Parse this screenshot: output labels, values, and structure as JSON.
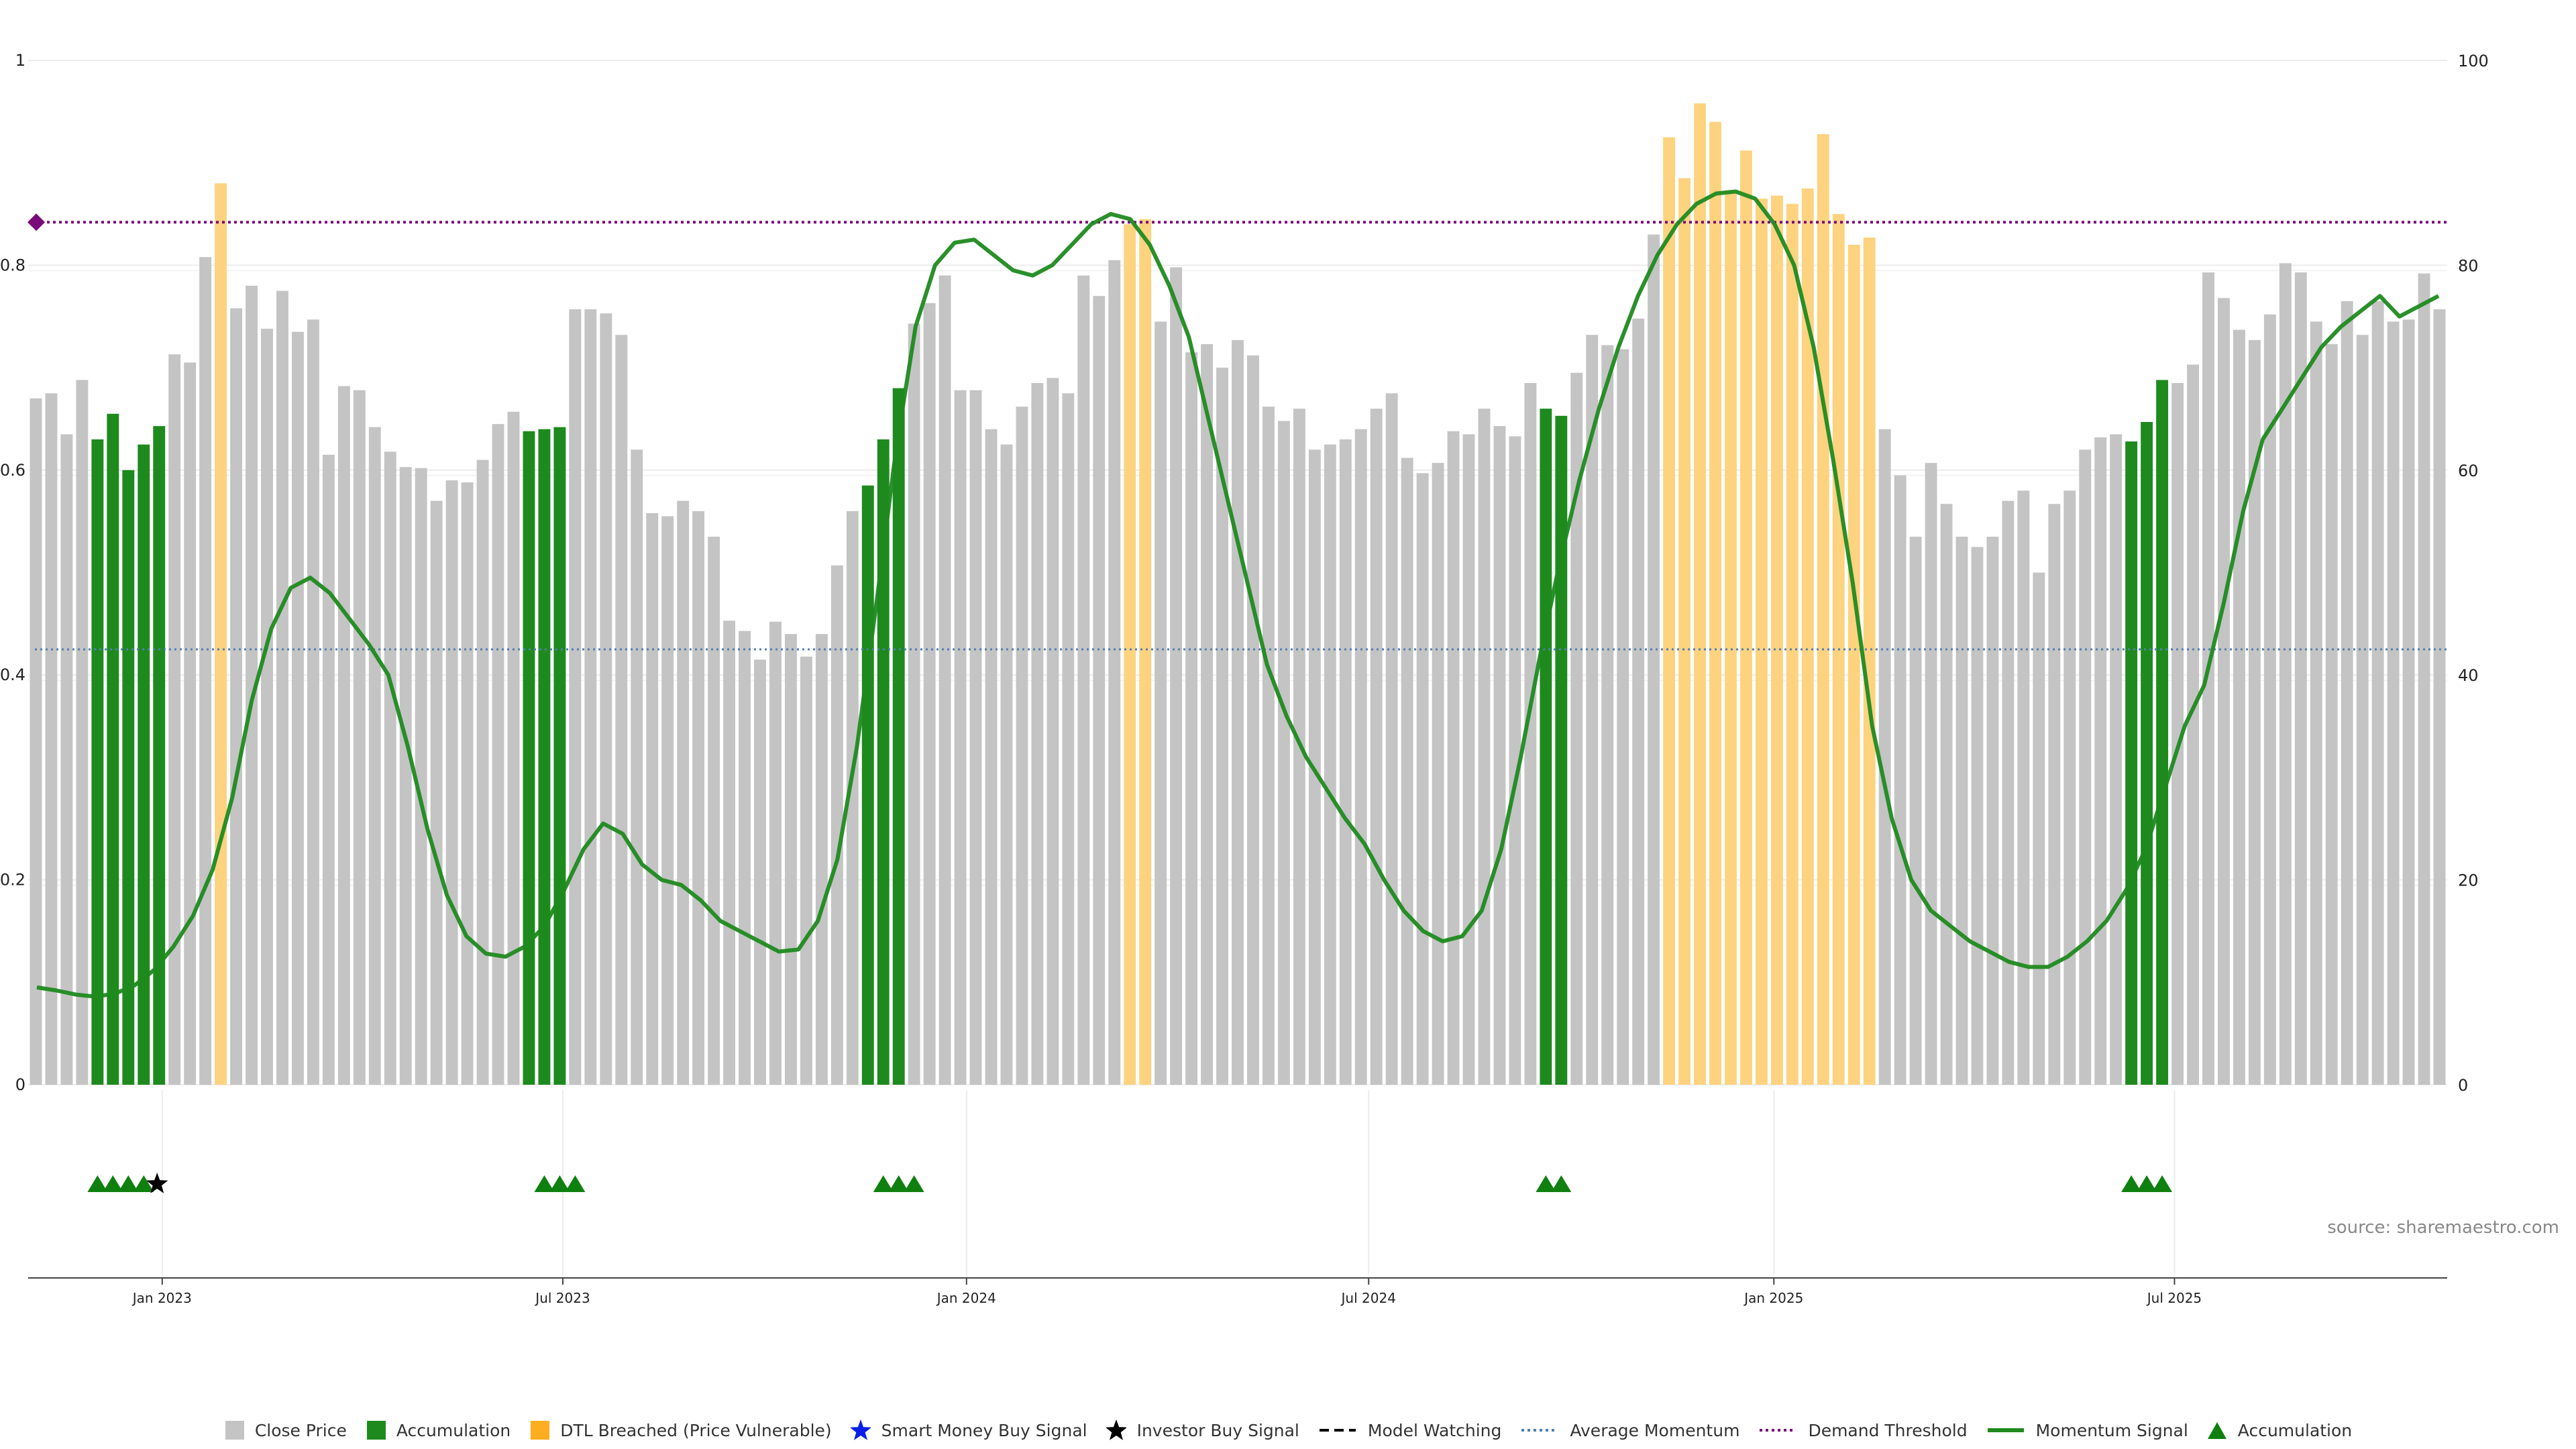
{
  "chart_data": {
    "type": "bar",
    "x_ticks": [
      "Jan 2023",
      "Jul 2023",
      "Jan 2024",
      "Jul 2024",
      "Jan 2025",
      "Jul 2025"
    ],
    "left_axis": {
      "ticks": [
        "0",
        "0.2",
        "0.4",
        "0.6",
        "0.8",
        "1"
      ],
      "ylim": [
        0,
        1
      ]
    },
    "right_axis": {
      "ticks": [
        "0",
        "20",
        "40",
        "60",
        "80",
        "100"
      ],
      "ylim": [
        0,
        100
      ]
    },
    "series_close_price": {
      "name": "Close Price",
      "color": "#c4c4c4",
      "values": [
        0.67,
        0.675,
        0.635,
        0.688,
        0.63,
        0.655,
        0.6,
        0.625,
        0.643,
        0.713,
        0.705,
        0.808,
        0.88,
        0.758,
        0.78,
        0.738,
        0.775,
        0.735,
        0.747,
        0.615,
        0.682,
        0.678,
        0.642,
        0.618,
        0.603,
        0.602,
        0.57,
        0.59,
        0.588,
        0.61,
        0.645,
        0.657,
        0.638,
        0.64,
        0.642,
        0.757,
        0.757,
        0.753,
        0.732,
        0.62,
        0.558,
        0.555,
        0.57,
        0.56,
        0.535,
        0.453,
        0.443,
        0.415,
        0.452,
        0.44,
        0.418,
        0.44,
        0.507,
        0.56,
        0.585,
        0.63,
        0.68,
        0.743,
        0.763,
        0.79,
        0.678,
        0.678,
        0.64,
        0.625,
        0.662,
        0.685,
        0.69,
        0.675,
        0.79,
        0.77,
        0.805,
        0.84,
        0.845,
        0.745,
        0.798,
        0.715,
        0.723,
        0.7,
        0.727,
        0.712,
        0.662,
        0.648,
        0.66,
        0.62,
        0.625,
        0.63,
        0.64,
        0.66,
        0.675,
        0.612,
        0.597,
        0.607,
        0.638,
        0.635,
        0.66,
        0.643,
        0.633,
        0.685,
        0.66,
        0.653,
        0.695,
        0.732,
        0.722,
        0.718,
        0.748,
        0.83,
        0.925,
        0.885,
        0.958,
        0.94,
        0.873,
        0.912,
        0.865,
        0.868,
        0.86,
        0.875,
        0.928,
        0.85,
        0.82,
        0.827,
        0.64,
        0.595,
        0.535,
        0.607,
        0.567,
        0.535,
        0.525,
        0.535,
        0.57,
        0.58,
        0.5,
        0.567,
        0.58,
        0.62,
        0.632,
        0.635,
        0.628,
        0.647,
        0.688,
        0.685,
        0.703,
        0.793,
        0.768,
        0.737,
        0.727,
        0.752,
        0.802,
        0.793,
        0.745,
        0.723,
        0.765,
        0.732,
        0.765,
        0.745,
        0.747,
        0.792,
        0.757
      ]
    },
    "series_accumulation_bars": {
      "name": "Accumulation",
      "color": "#1e8a1e",
      "indices": [
        4,
        5,
        6,
        7,
        8,
        32,
        33,
        34,
        54,
        55,
        56,
        98,
        99,
        136,
        137,
        138
      ]
    },
    "series_dtl_breached": {
      "name": "DTL Breached (Price Vulnerable)",
      "color": "#fdd380",
      "indices": [
        12,
        71,
        72,
        106,
        107,
        108,
        109,
        110,
        111,
        112,
        113,
        114,
        115,
        116,
        117,
        118,
        119
      ]
    },
    "series_momentum": {
      "name": "Momentum Signal",
      "color": "#1f8a1f",
      "values": [
        9.5,
        9.2,
        8.8,
        8.6,
        8.9,
        9.7,
        11.2,
        13.5,
        16.5,
        21,
        28,
        37.5,
        44.5,
        48.5,
        49.5,
        48,
        45.5,
        43,
        40,
        33,
        25,
        18.5,
        14.5,
        12.8,
        12.5,
        13.5,
        15.5,
        19,
        23,
        25.5,
        24.5,
        21.5,
        20,
        19.5,
        18,
        16,
        15,
        14,
        13,
        13.2,
        16,
        22,
        33,
        47,
        62,
        74,
        80,
        82.2,
        82.5,
        81,
        79.5,
        79,
        80,
        82,
        84,
        85,
        84.5,
        82,
        78,
        73,
        65,
        57,
        49,
        41,
        36,
        32,
        29,
        26,
        23.5,
        20,
        17,
        15,
        14,
        14.5,
        17,
        23,
        32,
        42,
        51,
        59,
        66,
        72,
        77,
        81,
        84,
        86,
        87,
        87.2,
        86.5,
        84,
        80,
        72,
        61,
        49,
        35,
        26,
        20,
        17,
        15.5,
        14,
        13,
        12,
        11.5,
        11.5,
        12.5,
        14,
        16,
        19,
        23,
        29,
        35,
        39,
        47,
        56,
        63,
        66,
        69,
        72,
        74,
        75.5,
        77,
        75,
        76,
        77
      ]
    },
    "average_momentum": {
      "name": "Average Momentum",
      "value": 0.425,
      "color": "#4f7fb5"
    },
    "demand_threshold": {
      "name": "Demand Threshold",
      "value": 0.842,
      "color": "#7a0a7a"
    },
    "accumulation_markers": {
      "name": "Accumulation",
      "color": "#0f800f",
      "indices": [
        4,
        5,
        6,
        7,
        33,
        34,
        35,
        55,
        56,
        57,
        98,
        99,
        136,
        137,
        138
      ]
    },
    "investor_buy_signal": {
      "name": "Investor Buy Signal",
      "color": "#000000",
      "indices": [
        8
      ]
    },
    "legend": [
      {
        "label": "Close Price",
        "icon": "square",
        "color": "#c4c4c4"
      },
      {
        "label": "Accumulation",
        "icon": "square",
        "color": "#1e8a1e"
      },
      {
        "label": "DTL Breached (Price Vulnerable)",
        "icon": "square",
        "color": "#ffad20"
      },
      {
        "label": "Smart Money Buy Signal",
        "icon": "star",
        "color": "#0a1fe6"
      },
      {
        "label": "Investor Buy Signal",
        "icon": "star",
        "color": "#000000"
      },
      {
        "label": "Model Watching",
        "icon": "dashed-line",
        "color": "#000000"
      },
      {
        "label": "Average Momentum",
        "icon": "dotted-line",
        "color": "#4f7fb5"
      },
      {
        "label": "Demand Threshold",
        "icon": "dotted-line",
        "color": "#7a0a7a"
      },
      {
        "label": "Momentum Signal",
        "icon": "solid-line",
        "color": "#1f8a1f"
      },
      {
        "label": "Accumulation",
        "icon": "triangle",
        "color": "#0f800f"
      }
    ],
    "source": "source: sharemaestro.com"
  }
}
